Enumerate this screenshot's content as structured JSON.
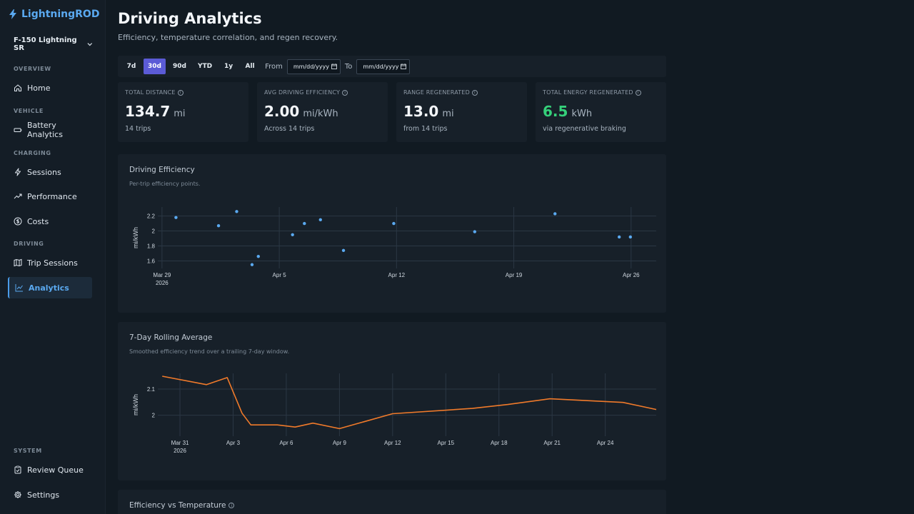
{
  "app": {
    "name": "LightningROD"
  },
  "vehicle": {
    "name": "F-150 Lightning SR"
  },
  "sidebar": {
    "sections": {
      "overview": "OVERVIEW",
      "vehicle": "VEHICLE",
      "charging": "CHARGING",
      "driving": "DRIVING",
      "system": "SYSTEM"
    },
    "items": {
      "home": "Home",
      "battery": "Battery Analytics",
      "sessions": "Sessions",
      "performance": "Performance",
      "costs": "Costs",
      "trips": "Trip Sessions",
      "analytics": "Analytics",
      "review": "Review Queue",
      "settings": "Settings"
    },
    "active": "analytics"
  },
  "header": {
    "title": "Driving Analytics",
    "subtitle": "Efficiency, temperature correlation, and regen recovery."
  },
  "filters": {
    "ranges": [
      "7d",
      "30d",
      "90d",
      "YTD",
      "1y",
      "All"
    ],
    "active_range": "30d",
    "from_label": "From",
    "to_label": "To",
    "date_placeholder": "mm/dd/yyyy"
  },
  "stats": {
    "distance": {
      "label": "TOTAL DISTANCE",
      "value": "134.7",
      "unit": "mi",
      "sub": "14 trips"
    },
    "efficiency": {
      "label": "AVG DRIVING EFFICIENCY",
      "value": "2.00",
      "unit": "mi/kWh",
      "sub": "Across 14 trips"
    },
    "range_regen": {
      "label": "RANGE REGENERATED",
      "value": "13.0",
      "unit": "mi",
      "sub": "from 14 trips"
    },
    "energy_regen": {
      "label": "TOTAL ENERGY REGENERATED",
      "value": "6.5",
      "unit": "kWh",
      "sub": "via regenerative braking",
      "color": "#35d07a"
    }
  },
  "charts": {
    "efficiency": {
      "title": "Driving Efficiency",
      "subtitle": "Per-trip efficiency points."
    },
    "rolling": {
      "title": "7-Day Rolling Average",
      "subtitle": "Smoothed efficiency trend over a trailing 7-day window."
    },
    "temperature": {
      "title": "Efficiency vs Temperature"
    }
  },
  "chart_data": [
    {
      "type": "scatter",
      "title": "Driving Efficiency",
      "ylabel": "mi/kWh",
      "xlabel": "",
      "ylim": [
        1.5,
        2.32
      ],
      "xlim": [
        "2026-03-28T18:00",
        "2026-04-27T12:00"
      ],
      "x_ticks": [
        "2026-03-29",
        "2026-04-05",
        "2026-04-12",
        "2026-04-19",
        "2026-04-26"
      ],
      "x_tick_labels": [
        "Mar 29",
        "Apr 5",
        "Apr 12",
        "Apr 19",
        "Apr 26"
      ],
      "x_tick_year": "2026",
      "y_ticks": [
        1.6,
        1.8,
        2,
        2.2
      ],
      "y_tick_labels": [
        "1.6",
        "1.8",
        "2",
        "2.2"
      ],
      "grid": true,
      "color": "#5aa9f0",
      "points": [
        {
          "x": "2026-03-29T20:00",
          "y": 2.18
        },
        {
          "x": "2026-04-01T09:00",
          "y": 2.07
        },
        {
          "x": "2026-04-02T11:00",
          "y": 2.26
        },
        {
          "x": "2026-04-03T09:00",
          "y": 1.55
        },
        {
          "x": "2026-04-03T18:00",
          "y": 1.66
        },
        {
          "x": "2026-04-05T19:00",
          "y": 1.95
        },
        {
          "x": "2026-04-06T12:00",
          "y": 2.1
        },
        {
          "x": "2026-04-07T11:00",
          "y": 2.15
        },
        {
          "x": "2026-04-08T20:00",
          "y": 1.74
        },
        {
          "x": "2026-04-11T20:00",
          "y": 2.1
        },
        {
          "x": "2026-04-16T16:00",
          "y": 1.99
        },
        {
          "x": "2026-04-21T11:00",
          "y": 2.23
        },
        {
          "x": "2026-04-25T07:00",
          "y": 1.92
        },
        {
          "x": "2026-04-25T23:00",
          "y": 1.92
        }
      ]
    },
    {
      "type": "line",
      "title": "7-Day Rolling Average",
      "ylabel": "mi/kWh",
      "xlabel": "",
      "ylim": [
        1.92,
        2.16
      ],
      "xlim": [
        "2026-03-29T18:00",
        "2026-04-26T21:00"
      ],
      "x_ticks": [
        "2026-03-31",
        "2026-04-03",
        "2026-04-06",
        "2026-04-09",
        "2026-04-12",
        "2026-04-15",
        "2026-04-18",
        "2026-04-21",
        "2026-04-24"
      ],
      "x_tick_labels": [
        "Mar 31",
        "Apr 3",
        "Apr 6",
        "Apr 9",
        "Apr 12",
        "Apr 15",
        "Apr 18",
        "Apr 21",
        "Apr 24"
      ],
      "x_tick_year": "2026",
      "y_ticks": [
        2,
        2.1
      ],
      "y_tick_labels": [
        "2",
        "2.1"
      ],
      "grid": true,
      "color": "#f07a2a",
      "points": [
        {
          "x": "2026-03-30T00:00",
          "y": 2.149
        },
        {
          "x": "2026-04-01T12:00",
          "y": 2.117
        },
        {
          "x": "2026-04-02T16:00",
          "y": 2.144
        },
        {
          "x": "2026-04-03T12:00",
          "y": 2.008
        },
        {
          "x": "2026-04-04T00:00",
          "y": 1.963
        },
        {
          "x": "2026-04-05T12:00",
          "y": 1.963
        },
        {
          "x": "2026-04-06T12:00",
          "y": 1.955
        },
        {
          "x": "2026-04-07T12:00",
          "y": 1.97
        },
        {
          "x": "2026-04-09T00:00",
          "y": 1.949
        },
        {
          "x": "2026-04-12T00:00",
          "y": 2.006
        },
        {
          "x": "2026-04-16T12:00",
          "y": 2.026
        },
        {
          "x": "2026-04-18T12:00",
          "y": 2.041
        },
        {
          "x": "2026-04-20T21:00",
          "y": 2.063
        },
        {
          "x": "2026-04-25T00:00",
          "y": 2.049
        },
        {
          "x": "2026-04-26T21:00",
          "y": 2.022
        }
      ]
    }
  ]
}
